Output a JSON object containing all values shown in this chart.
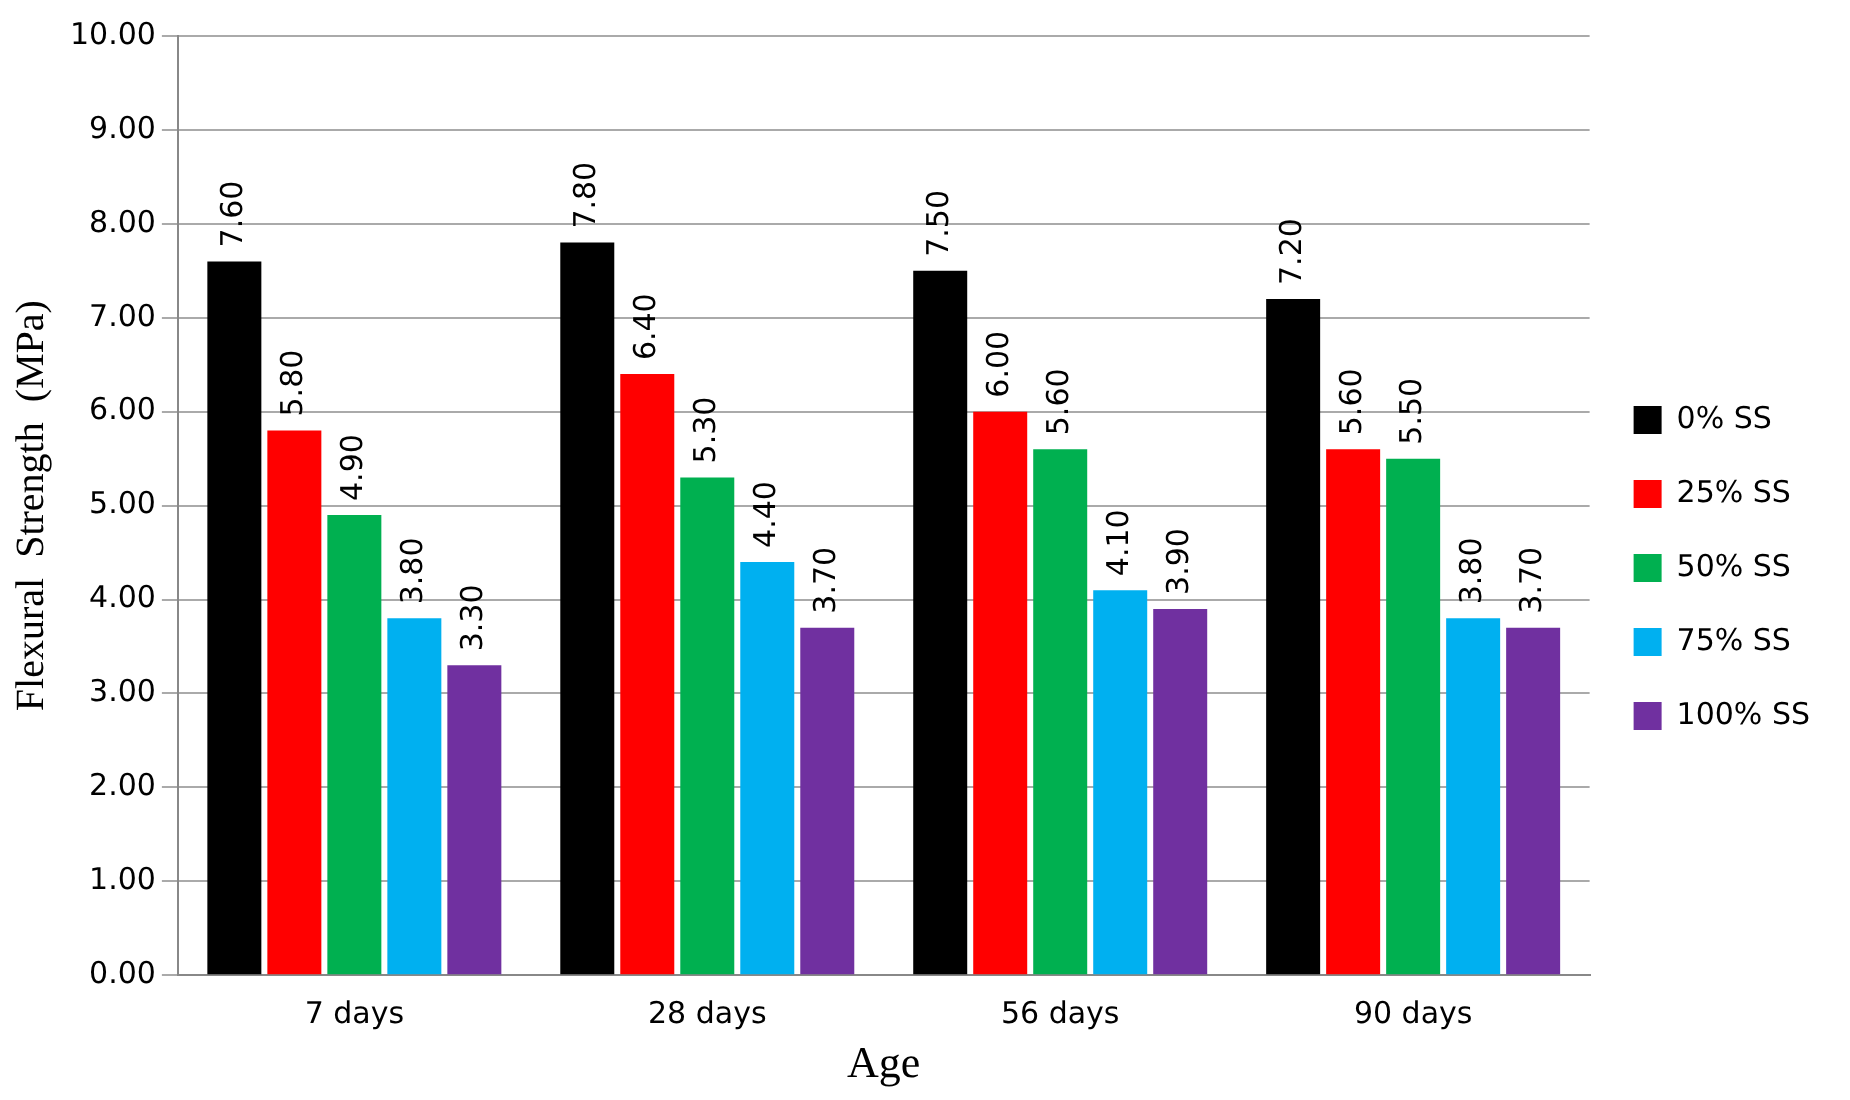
{
  "chart_data": {
    "type": "bar",
    "xlabel": "Age",
    "ylabel": "Flexural  Strength  (MPa)",
    "categories": [
      "7 days",
      "28 days",
      "56 days",
      "90 days"
    ],
    "series": [
      {
        "name": "0% SS",
        "color": "#000000",
        "values": [
          7.6,
          7.8,
          7.5,
          7.2
        ],
        "value_labels": [
          "7.60",
          "7.80",
          "7.50",
          "7.20"
        ]
      },
      {
        "name": "25% SS",
        "color": "#ff0000",
        "values": [
          5.8,
          6.4,
          6.0,
          5.6
        ],
        "value_labels": [
          "5.80",
          "6.40",
          "6.00",
          "5.60"
        ]
      },
      {
        "name": "50% SS",
        "color": "#00b050",
        "values": [
          4.9,
          5.3,
          5.6,
          5.5
        ],
        "value_labels": [
          "4.90",
          "5.30",
          "5.60",
          "5.50"
        ]
      },
      {
        "name": "75% SS",
        "color": "#00b0f0",
        "values": [
          3.8,
          4.4,
          4.1,
          3.8
        ],
        "value_labels": [
          "3.80",
          "4.40",
          "4.10",
          "3.80"
        ]
      },
      {
        "name": "100% SS",
        "color": "#7030a0",
        "values": [
          3.3,
          3.7,
          3.9,
          3.7
        ],
        "value_labels": [
          "3.30",
          "3.70",
          "3.90",
          "3.70"
        ]
      }
    ],
    "ylim": [
      0,
      10
    ],
    "yticks": [
      {
        "value": 0,
        "label": "0.00"
      },
      {
        "value": 1,
        "label": "1.00"
      },
      {
        "value": 2,
        "label": "2.00"
      },
      {
        "value": 3,
        "label": "3.00"
      },
      {
        "value": 4,
        "label": "4.00"
      },
      {
        "value": 5,
        "label": "5.00"
      },
      {
        "value": 6,
        "label": "6.00"
      },
      {
        "value": 7,
        "label": "7.00"
      },
      {
        "value": 8,
        "label": "8.00"
      },
      {
        "value": 9,
        "label": "9.00"
      },
      {
        "value": 10,
        "label": "10.00"
      }
    ],
    "grid": "y",
    "legend": "right"
  }
}
